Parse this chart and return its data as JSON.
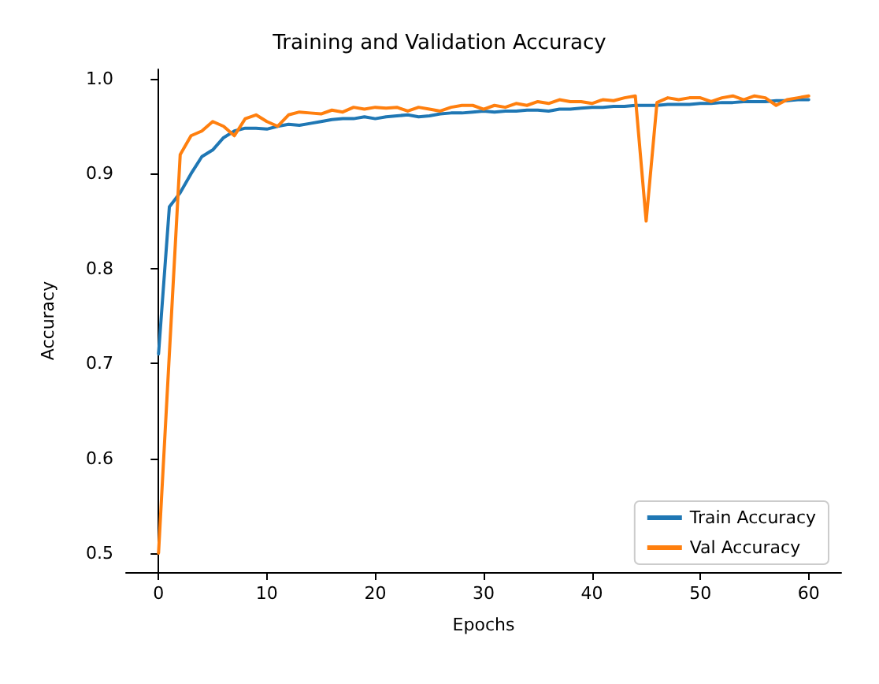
{
  "chart_data": {
    "type": "line",
    "title": "Training and Validation Accuracy",
    "xlabel": "Epochs",
    "ylabel": "Accuracy",
    "x": [
      0,
      1,
      2,
      3,
      4,
      5,
      6,
      7,
      8,
      9,
      10,
      11,
      12,
      13,
      14,
      15,
      16,
      17,
      18,
      19,
      20,
      21,
      22,
      23,
      24,
      25,
      26,
      27,
      28,
      29,
      30,
      31,
      32,
      33,
      34,
      35,
      36,
      37,
      38,
      39,
      40,
      41,
      42,
      43,
      44,
      45,
      46,
      47,
      48,
      49,
      50,
      51,
      52,
      53,
      54,
      55,
      56,
      57,
      58,
      59,
      60
    ],
    "series": [
      {
        "name": "Train Accuracy",
        "color": "#1f77b4",
        "values": [
          0.71,
          0.865,
          0.88,
          0.9,
          0.918,
          0.925,
          0.938,
          0.945,
          0.948,
          0.948,
          0.947,
          0.95,
          0.952,
          0.951,
          0.953,
          0.955,
          0.957,
          0.958,
          0.958,
          0.96,
          0.958,
          0.96,
          0.961,
          0.962,
          0.96,
          0.961,
          0.963,
          0.964,
          0.964,
          0.965,
          0.966,
          0.965,
          0.966,
          0.966,
          0.967,
          0.967,
          0.966,
          0.968,
          0.968,
          0.969,
          0.97,
          0.97,
          0.971,
          0.971,
          0.972,
          0.972,
          0.972,
          0.973,
          0.973,
          0.973,
          0.974,
          0.974,
          0.975,
          0.975,
          0.976,
          0.976,
          0.976,
          0.977,
          0.977,
          0.978,
          0.978
        ]
      },
      {
        "name": "Val Accuracy",
        "color": "#ff7f0e",
        "values": [
          0.5,
          0.71,
          0.92,
          0.94,
          0.945,
          0.955,
          0.95,
          0.94,
          0.958,
          0.962,
          0.955,
          0.95,
          0.962,
          0.965,
          0.964,
          0.963,
          0.967,
          0.965,
          0.97,
          0.968,
          0.97,
          0.969,
          0.97,
          0.966,
          0.97,
          0.968,
          0.966,
          0.97,
          0.972,
          0.972,
          0.968,
          0.972,
          0.97,
          0.974,
          0.972,
          0.976,
          0.974,
          0.978,
          0.976,
          0.976,
          0.974,
          0.978,
          0.977,
          0.98,
          0.982,
          0.85,
          0.975,
          0.98,
          0.978,
          0.98,
          0.98,
          0.976,
          0.98,
          0.982,
          0.978,
          0.982,
          0.98,
          0.972,
          0.978,
          0.98,
          0.982
        ]
      }
    ],
    "xlim": [
      -3,
      63
    ],
    "xticks": [
      0,
      10,
      20,
      30,
      40,
      50,
      60
    ],
    "ylim": [
      0.48,
      1.01
    ],
    "yticks": [
      {
        "value": 0.5,
        "label": "0.5"
      },
      {
        "value": 0.6,
        "label": "0.6"
      },
      {
        "value": 0.7,
        "label": "0.7"
      },
      {
        "value": 0.8,
        "label": "0.8"
      },
      {
        "value": 0.9,
        "label": "0.9"
      },
      {
        "value": 1.0,
        "label": "1.0"
      }
    ],
    "legend": "bottom right",
    "grid": false,
    "marker": "none",
    "line_style": "solid"
  }
}
